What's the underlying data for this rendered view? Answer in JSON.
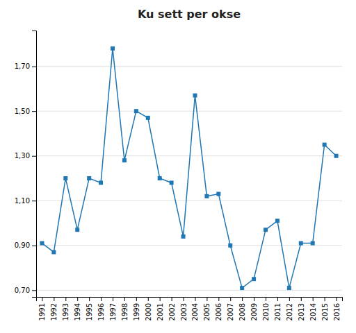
{
  "chart_data": {
    "type": "line",
    "title": "Ku sett per okse",
    "x": [
      1991,
      1992,
      1993,
      1994,
      1995,
      1996,
      1997,
      1998,
      1999,
      2000,
      2001,
      2002,
      2003,
      2004,
      2005,
      2006,
      2007,
      2008,
      2009,
      2010,
      2011,
      2012,
      2013,
      2014,
      2015,
      2016
    ],
    "values": [
      0.91,
      0.87,
      1.2,
      0.97,
      1.2,
      1.18,
      1.78,
      1.28,
      1.5,
      1.47,
      1.2,
      1.18,
      0.94,
      1.57,
      1.12,
      1.13,
      0.9,
      0.71,
      0.75,
      0.97,
      1.01,
      0.71,
      0.91,
      0.91,
      1.35,
      1.3
    ],
    "xlim": [
      1990.5,
      2016.5
    ],
    "xticks": [
      1991,
      1992,
      1993,
      1994,
      1995,
      1996,
      1997,
      1998,
      1999,
      2000,
      2001,
      2002,
      2003,
      2004,
      2005,
      2006,
      2007,
      2008,
      2009,
      2010,
      2011,
      2012,
      2013,
      2014,
      2015,
      2016
    ],
    "ylim": [
      0.67,
      1.86
    ],
    "yticks": [
      {
        "value": 0.7,
        "label": "0,70"
      },
      {
        "value": 0.9,
        "label": "0,90"
      },
      {
        "value": 1.1,
        "label": "1,10"
      },
      {
        "value": 1.3,
        "label": "1,30"
      },
      {
        "value": 1.5,
        "label": "1,50"
      },
      {
        "value": 1.7,
        "label": "1,70"
      }
    ],
    "grid": true,
    "marker": "square"
  }
}
